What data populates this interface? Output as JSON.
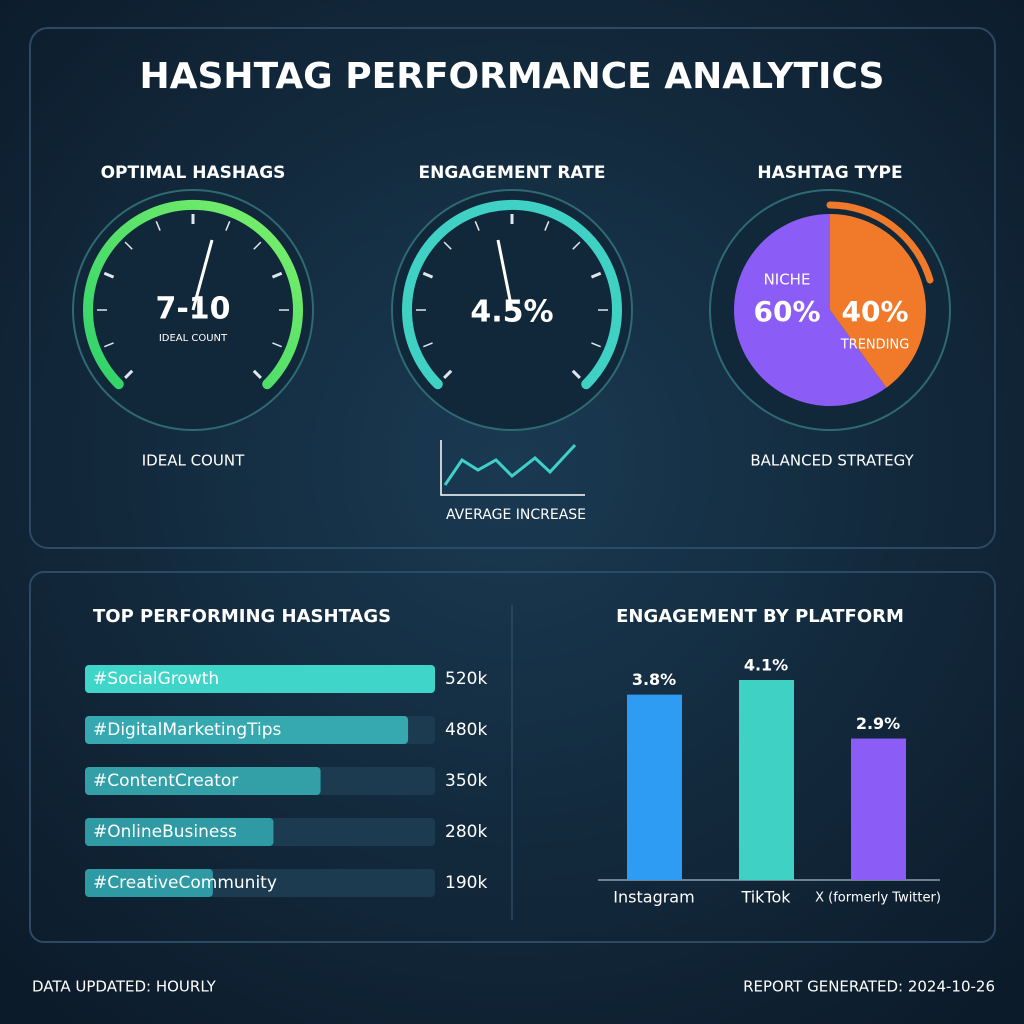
{
  "title": "HASHTAG PERFORMANCE ANALYTICS",
  "gauges": [
    {
      "title": "OPTIMAL HASHAGS",
      "value": "7-10",
      "inner_label": "IDEAL COUNT",
      "caption": "IDEAL COUNT"
    },
    {
      "title": "ENGAGEMENT RATE",
      "value": "4.5%",
      "caption": "AVERAGE INCREASE"
    }
  ],
  "chart_data": [
    {
      "type": "pie",
      "title": "HASHTAG TYPE",
      "categories": [
        "NICHE",
        "TRENDING"
      ],
      "values": [
        60,
        40
      ],
      "value_labels": [
        "60%",
        "40%"
      ],
      "colors": [
        "#8b5cf6",
        "#f07a2a"
      ],
      "caption": "BALANCED STRATEGY"
    },
    {
      "type": "hbar",
      "title": "TOP PERFORMING HASHTAGS",
      "categories": [
        "#SocialGrowth",
        "#DigitalMarketingTips",
        "#ContentCreator",
        "#OnlineBusiness",
        "#CreativeCommunity"
      ],
      "values": [
        520000,
        480000,
        350000,
        280000,
        190000
      ],
      "value_labels": [
        "520k",
        "480k",
        "350k",
        "280k",
        "190k"
      ],
      "colors": [
        "#3fd6c9",
        "#36a9b0",
        "#33a0a8",
        "#2f9aa4",
        "#2e9aa3"
      ]
    },
    {
      "type": "bar",
      "title": "ENGAGEMENT BY PLATFORM",
      "categories": [
        "Instagram",
        "TikTok",
        "X (formerly Twitter)"
      ],
      "values": [
        3.8,
        4.1,
        2.9
      ],
      "value_labels": [
        "3.8%",
        "4.1%",
        "2.9%"
      ],
      "colors": [
        "#2f9cf4",
        "#3fd1c4",
        "#8b5cf6"
      ]
    }
  ],
  "footer": {
    "left": "DATA UPDATED: HOURLY",
    "right": "REPORT GENERATED: 2024-10-26"
  }
}
